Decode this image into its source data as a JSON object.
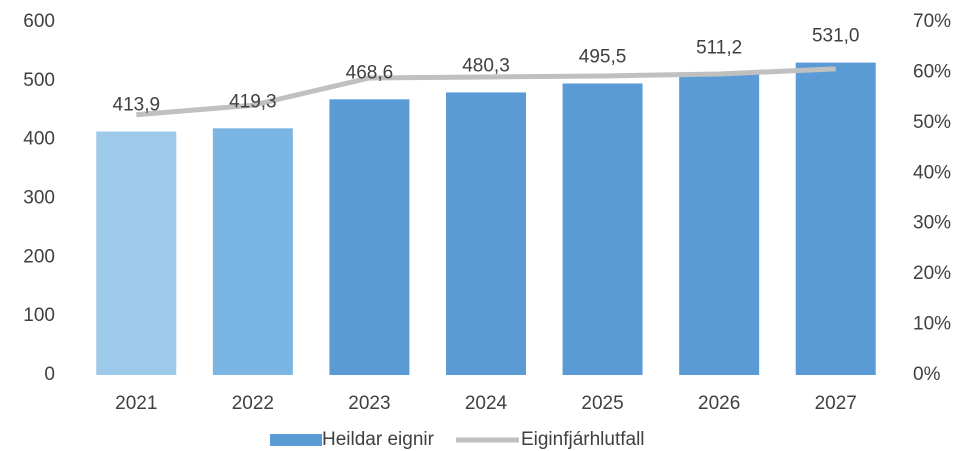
{
  "chart_data": {
    "type": "bar",
    "categories": [
      "2021",
      "2022",
      "2023",
      "2024",
      "2025",
      "2026",
      "2027"
    ],
    "series": [
      {
        "name": "Heildar eignir",
        "type": "bar",
        "color": "#5b9bd5",
        "colors": [
          "#9dc9ea",
          "#7ab5e3",
          "#5b9bd5",
          "#5b9bd5",
          "#5b9bd5",
          "#5b9bd5",
          "#5b9bd5"
        ],
        "values": [
          413.9,
          419.3,
          468.6,
          480.3,
          495.5,
          511.2,
          531.0
        ],
        "value_labels": [
          "413,9",
          "419,3",
          "468,6",
          "480,3",
          "495,5",
          "511,2",
          "531,0"
        ]
      },
      {
        "name": "Eiginfjárhlutfall",
        "type": "line",
        "axis": "y2",
        "color": "#c0c0c0",
        "values": [
          51.6,
          53.5,
          58.9,
          59.1,
          59.3,
          59.7,
          60.7
        ]
      }
    ],
    "ylim": [
      0,
      600
    ],
    "yticks": [
      0,
      100,
      200,
      300,
      400,
      500,
      600
    ],
    "y2lim": [
      0,
      70
    ],
    "y2ticks": [
      {
        "value": 0,
        "label": "0%"
      },
      {
        "value": 10,
        "label": "10%"
      },
      {
        "value": 20,
        "label": "20%"
      },
      {
        "value": 30,
        "label": "30%"
      },
      {
        "value": 40,
        "label": "40%"
      },
      {
        "value": 50,
        "label": "50%"
      },
      {
        "value": 60,
        "label": "60%"
      },
      {
        "value": 70,
        "label": "70%"
      }
    ],
    "grid": false,
    "legend": "bottom"
  }
}
